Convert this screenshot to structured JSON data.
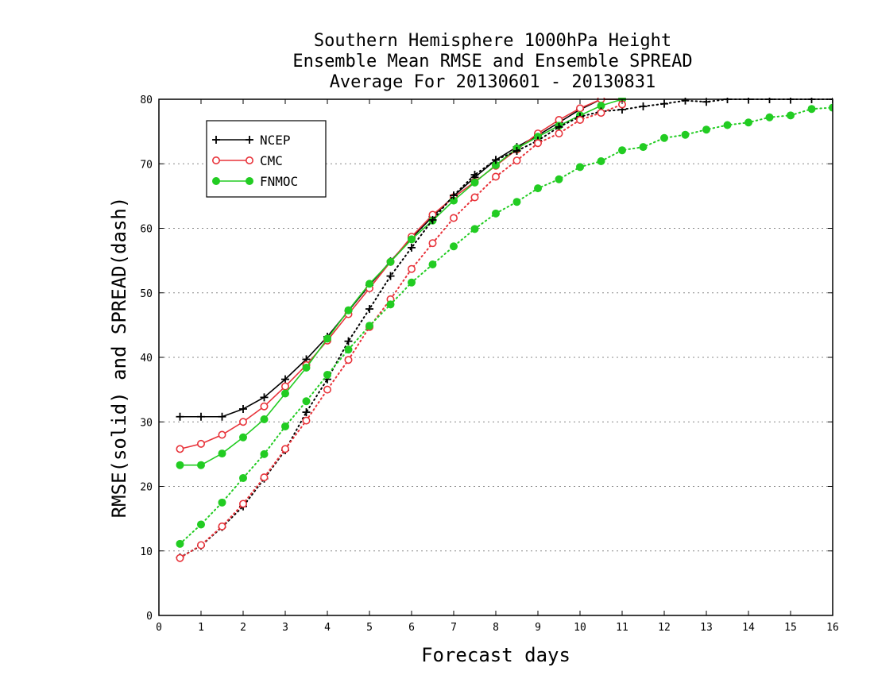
{
  "chart_data": {
    "type": "line",
    "title": [
      "Southern Hemisphere 1000hPa Height",
      "Ensemble Mean RMSE and Ensemble SPREAD",
      "Average For 20130601 - 20130831"
    ],
    "xlabel": "Forecast days",
    "ylabel": "RMSE(solid) and SPREAD(dash)",
    "xlim": [
      0,
      16
    ],
    "ylim": [
      0,
      80
    ],
    "xticks": [
      0,
      1,
      2,
      3,
      4,
      5,
      6,
      7,
      8,
      9,
      10,
      11,
      12,
      13,
      14,
      15,
      16
    ],
    "yticks": [
      0,
      10,
      20,
      30,
      40,
      50,
      60,
      70,
      80
    ],
    "grid": "horizontal dotted",
    "legend_position": "top-left",
    "series": [
      {
        "name": "NCEP",
        "metric": "RMSE",
        "style": "solid",
        "marker": "plus",
        "color": "#000000",
        "x": [
          0.5,
          1,
          1.5,
          2,
          2.5,
          3,
          3.5,
          4,
          4.5,
          5,
          5.5,
          6,
          6.5,
          7,
          7.5,
          8,
          8.5,
          9,
          9.5,
          10,
          10.5,
          11
        ],
        "y": [
          30.8,
          30.8,
          30.8,
          32.0,
          33.8,
          36.6,
          39.7,
          43.2,
          47.2,
          51.2,
          54.9,
          58.5,
          61.8,
          65.0,
          67.9,
          70.6,
          72.6,
          74.4,
          76.4,
          78.4,
          80.0,
          80.0
        ]
      },
      {
        "name": "CMC",
        "metric": "RMSE",
        "style": "solid",
        "marker": "open-circle",
        "color": "#e8333a",
        "x": [
          0.5,
          1,
          1.5,
          2,
          2.5,
          3,
          3.5,
          4,
          4.5,
          5,
          5.5,
          6,
          6.5,
          7,
          7.5,
          8,
          8.5,
          9,
          9.5,
          10,
          10.5,
          11
        ],
        "y": [
          25.8,
          26.6,
          28.0,
          30.0,
          32.4,
          35.5,
          38.8,
          42.6,
          46.7,
          50.7,
          54.8,
          58.7,
          62.1,
          64.8,
          67.2,
          69.7,
          72.2,
          74.7,
          76.8,
          78.6,
          80.0,
          80.0
        ]
      },
      {
        "name": "FNMOC",
        "metric": "RMSE",
        "style": "solid",
        "marker": "filled-circle",
        "color": "#22cc22",
        "x": [
          0.5,
          1,
          1.5,
          2,
          2.5,
          3,
          3.5,
          4,
          4.5,
          5,
          5.5,
          6,
          6.5,
          7,
          7.5,
          8,
          8.5,
          9,
          9.5,
          10,
          10.5,
          11
        ],
        "y": [
          23.3,
          23.3,
          25.1,
          27.6,
          30.4,
          34.4,
          38.4,
          42.9,
          47.3,
          51.4,
          54.8,
          58.3,
          61.2,
          64.3,
          67.1,
          69.8,
          72.4,
          74.2,
          75.9,
          77.5,
          79.0,
          80.0
        ]
      },
      {
        "name": "NCEP",
        "metric": "SPREAD",
        "style": "dotted",
        "marker": "plus",
        "color": "#000000",
        "x": [
          0.5,
          1,
          1.5,
          2,
          2.5,
          3,
          3.5,
          4,
          4.5,
          5,
          5.5,
          6,
          6.5,
          7,
          7.5,
          8,
          8.5,
          9,
          9.5,
          10,
          10.5,
          11,
          11.5,
          12,
          12.5,
          13,
          13.5,
          14,
          14.5,
          15,
          15.5,
          16
        ],
        "y": [
          9.0,
          10.8,
          13.7,
          16.9,
          21.2,
          25.6,
          31.5,
          36.6,
          42.5,
          47.5,
          52.6,
          57.0,
          61.3,
          65.1,
          68.3,
          70.6,
          72.0,
          73.6,
          75.7,
          77.3,
          78.1,
          78.4,
          78.9,
          79.3,
          79.8,
          79.6,
          80.0,
          80.0,
          80.0,
          80.0,
          80.0,
          80.0
        ]
      },
      {
        "name": "CMC",
        "metric": "SPREAD",
        "style": "dotted",
        "marker": "open-circle",
        "color": "#e8333a",
        "x": [
          0.5,
          1,
          1.5,
          2,
          2.5,
          3,
          3.5,
          4,
          4.5,
          5,
          5.5,
          6,
          6.5,
          7,
          7.5,
          8,
          8.5,
          9,
          9.5,
          10,
          10.5,
          11
        ],
        "y": [
          8.9,
          10.9,
          13.8,
          17.3,
          21.4,
          25.8,
          30.2,
          35.0,
          39.6,
          44.7,
          49.0,
          53.7,
          57.7,
          61.6,
          64.8,
          68.0,
          70.5,
          73.2,
          74.7,
          76.8,
          77.9,
          79.2
        ]
      },
      {
        "name": "FNMOC",
        "metric": "SPREAD",
        "style": "dotted",
        "marker": "filled-circle",
        "color": "#22cc22",
        "x": [
          0.5,
          1,
          1.5,
          2,
          2.5,
          3,
          3.5,
          4,
          4.5,
          5,
          5.5,
          6,
          6.5,
          7,
          7.5,
          8,
          8.5,
          9,
          9.5,
          10,
          10.5,
          11,
          11.5,
          12,
          12.5,
          13,
          13.5,
          14,
          14.5,
          15,
          15.5,
          16
        ],
        "y": [
          11.1,
          14.1,
          17.5,
          21.3,
          25.0,
          29.3,
          33.2,
          37.3,
          41.2,
          44.9,
          48.2,
          51.6,
          54.4,
          57.2,
          59.9,
          62.3,
          64.1,
          66.2,
          67.6,
          69.5,
          70.4,
          72.1,
          72.6,
          74.0,
          74.5,
          75.3,
          76.0,
          76.4,
          77.2,
          77.5,
          78.5,
          78.7
        ]
      }
    ],
    "legend": [
      "NCEP",
      "CMC",
      "FNMOC"
    ]
  }
}
